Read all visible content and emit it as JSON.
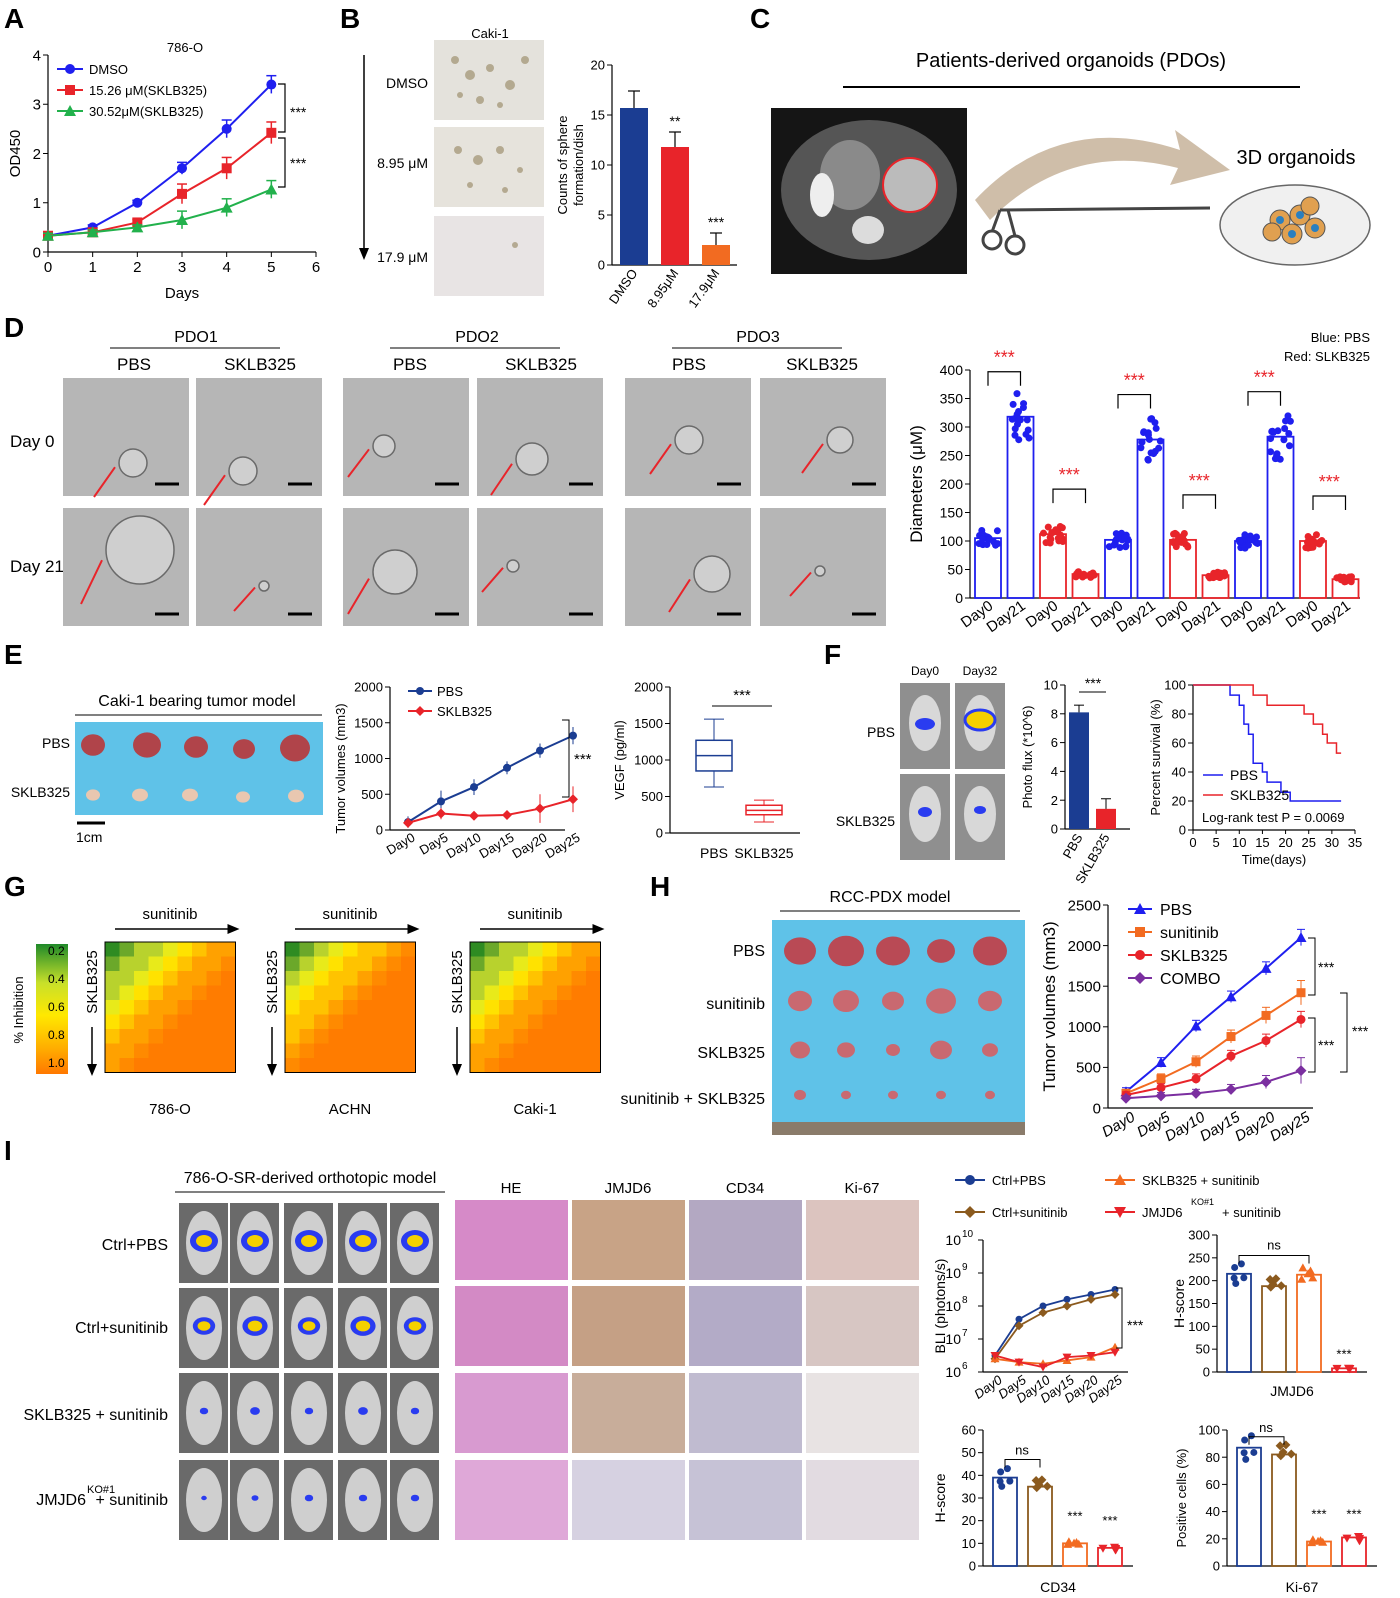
{
  "panel_labels": [
    "A",
    "B",
    "C",
    "D",
    "E",
    "F",
    "G",
    "H",
    "I"
  ],
  "panelA": {
    "chart_data": {
      "type": "line",
      "title": "786-O",
      "xlabel": "Days",
      "ylabel": "OD450",
      "xlim": [
        0,
        6
      ],
      "ylim": [
        0,
        4
      ],
      "xticks": [
        "0",
        "1",
        "2",
        "3",
        "4",
        "5",
        "6"
      ],
      "yticks": [
        "0",
        "1",
        "2",
        "3",
        "4"
      ],
      "x": [
        0,
        1,
        2,
        3,
        4,
        5
      ],
      "series": [
        {
          "name": "DMSO",
          "color": "#1f1fef",
          "marker": "circle",
          "values": [
            0.33,
            0.5,
            1.0,
            1.7,
            2.5,
            3.4
          ],
          "err": [
            0.05,
            0.05,
            0.05,
            0.12,
            0.18,
            0.18
          ]
        },
        {
          "name": "15.26 μM(SKLB325)",
          "color": "#e8242a",
          "marker": "square",
          "values": [
            0.33,
            0.4,
            0.6,
            1.18,
            1.7,
            2.42
          ],
          "err": [
            0.05,
            0.05,
            0.06,
            0.2,
            0.22,
            0.22
          ]
        },
        {
          "name": "30.52μM(SKLB325)",
          "color": "#22b14c",
          "marker": "triangle",
          "values": [
            0.33,
            0.4,
            0.5,
            0.65,
            0.9,
            1.27
          ],
          "err": [
            0.05,
            0.05,
            0.05,
            0.18,
            0.18,
            0.18
          ]
        }
      ],
      "annotations": [
        "***",
        "***"
      ]
    }
  },
  "panelB": {
    "title": "Caki-1",
    "row_labels": [
      "DMSO",
      "8.95 μM",
      "17.9 μM"
    ],
    "chart_data": {
      "type": "bar",
      "categories": [
        "DMSO",
        "8.95μM",
        "17.9μM"
      ],
      "values": [
        15.7,
        11.8,
        2.0
      ],
      "err": [
        1.7,
        1.5,
        1.2
      ],
      "colors": [
        "#1b3d92",
        "#e8242a",
        "#f26b21"
      ],
      "ylabel": "Counts of sphere formation/dish",
      "ylim": [
        0,
        20
      ],
      "yticks": [
        "0",
        "5",
        "10",
        "15",
        "20"
      ],
      "annotations": [
        "",
        "**",
        "***"
      ]
    }
  },
  "panelC": {
    "title": "Patients-derived organoids (PDOs)",
    "label_3d": "3D organoids"
  },
  "panelD": {
    "groups": [
      "PDO1",
      "PDO2",
      "PDO3"
    ],
    "conditions": [
      "PBS",
      "SKLB325"
    ],
    "days": [
      "Day 0",
      "Day 21"
    ],
    "legend_blue": "Blue: PBS",
    "legend_red": "Red: SLKB325",
    "chart_data": {
      "type": "bar",
      "ylabel": "Diameters (μM)",
      "ylim": [
        0,
        400
      ],
      "yticks": [
        "0",
        "50",
        "100",
        "150",
        "200",
        "250",
        "300",
        "350",
        "400"
      ],
      "categories": [
        "Day0",
        "Day21",
        "Day0",
        "Day21",
        "Day0",
        "Day21",
        "Day0",
        "Day21",
        "Day0",
        "Day21",
        "Day0",
        "Day21"
      ],
      "values": [
        105,
        318,
        112,
        42,
        102,
        278,
        102,
        40,
        100,
        283,
        100,
        33
      ],
      "colors": [
        "#1f1fef",
        "#1f1fef",
        "#e8242a",
        "#e8242a",
        "#1f1fef",
        "#1f1fef",
        "#e8242a",
        "#e8242a",
        "#1f1fef",
        "#1f1fef",
        "#e8242a",
        "#e8242a"
      ],
      "annotations": [
        "***",
        "***",
        "***",
        "***",
        "***",
        "***"
      ]
    }
  },
  "panelE": {
    "model_title": "Caki-1  bearing tumor model",
    "rows": [
      "PBS",
      "SKLB325"
    ],
    "scale": "1cm",
    "line_chart": {
      "type": "line",
      "ylabel": "Tumor volumes (mm3)",
      "ylim": [
        0,
        2000
      ],
      "yticks": [
        "0",
        "500",
        "1000",
        "1500",
        "2000"
      ],
      "x": [
        "Day0",
        "Day5",
        "Day10",
        "Day15",
        "Day20",
        "Day25"
      ],
      "series": [
        {
          "name": "PBS",
          "color": "#1b3d92",
          "values": [
            110,
            400,
            600,
            870,
            1110,
            1320
          ],
          "err": [
            80,
            150,
            110,
            90,
            100,
            120
          ]
        },
        {
          "name": "SKLB325",
          "color": "#e8242a",
          "values": [
            100,
            230,
            200,
            210,
            300,
            430
          ],
          "err": [
            70,
            80,
            60,
            60,
            200,
            180
          ]
        }
      ],
      "annotation": "***"
    },
    "box_chart": {
      "type": "box",
      "ylabel": "VEGF (pg/ml)",
      "ylim": [
        0,
        2000
      ],
      "yticks": [
        "0",
        "500",
        "1000",
        "1500",
        "2000"
      ],
      "categories": [
        "PBS",
        "SKLB325"
      ],
      "boxes": [
        {
          "min": 630,
          "q1": 850,
          "median": 1060,
          "q3": 1270,
          "max": 1560,
          "color": "#1b3d92"
        },
        {
          "min": 150,
          "q1": 250,
          "median": 310,
          "q3": 380,
          "max": 450,
          "color": "#e8242a"
        }
      ],
      "annotation": "***"
    }
  },
  "panelF": {
    "col_labels": [
      "Day0",
      "Day32"
    ],
    "rows": [
      "PBS",
      "SKLB325"
    ],
    "bar_chart": {
      "type": "bar",
      "ylabel": "Photo flux (*10^6)",
      "ylim": [
        0,
        10
      ],
      "yticks": [
        "0",
        "2",
        "4",
        "6",
        "8",
        "10"
      ],
      "categories": [
        "PBS",
        "SKLB325"
      ],
      "values": [
        8.1,
        1.4
      ],
      "err": [
        0.5,
        0.7
      ],
      "colors": [
        "#1b3d92",
        "#e8242a"
      ],
      "annotation": "***"
    },
    "survival_chart": {
      "type": "line",
      "xlabel": "Time(days)",
      "ylabel": "Percent survival (%)",
      "xlim": [
        0,
        35
      ],
      "ylim": [
        0,
        100
      ],
      "xticks": [
        "0",
        "5",
        "10",
        "15",
        "20",
        "25",
        "30",
        "35"
      ],
      "yticks": [
        "0",
        "20",
        "40",
        "60",
        "80",
        "100"
      ],
      "series": [
        {
          "name": "PBS",
          "color": "#1f1fef",
          "x": [
            0,
            8,
            8,
            10,
            10,
            11,
            11,
            12,
            12,
            13,
            13,
            15,
            15,
            16,
            16,
            19,
            19,
            21,
            21,
            23,
            23,
            32
          ],
          "values": [
            100,
            100,
            93,
            93,
            86,
            86,
            73,
            73,
            66,
            66,
            46,
            46,
            40,
            40,
            33,
            33,
            26,
            26,
            20,
            20,
            20,
            20
          ]
        },
        {
          "name": "SKLB325",
          "color": "#e8242a",
          "x": [
            0,
            13,
            13,
            16,
            16,
            24,
            24,
            26,
            26,
            28,
            28,
            29,
            29,
            31,
            31,
            32
          ],
          "values": [
            100,
            100,
            93,
            93,
            86,
            86,
            80,
            80,
            73,
            73,
            66,
            66,
            60,
            60,
            53,
            53
          ]
        }
      ],
      "annotation": "Log-rank test P = 0.0069"
    }
  },
  "panelG": {
    "drug_x": "sunitinib",
    "drug_y": "SKLB325",
    "cell_lines": [
      "786-O",
      "ACHN",
      "Caki-1"
    ],
    "colorbar_label": "% Inhibition",
    "colorbar_ticks": [
      "0.2",
      "0.4",
      "0.6",
      "0.8",
      "1.0"
    ]
  },
  "panelH": {
    "model_title": "RCC-PDX model",
    "rows": [
      "PBS",
      "sunitinib",
      "SKLB325",
      "sunitinib + SKLB325"
    ],
    "chart_data": {
      "type": "line",
      "ylabel": "Tumor volumes (mm3)",
      "ylim": [
        0,
        2500
      ],
      "yticks": [
        "0",
        "500",
        "1000",
        "1500",
        "2000",
        "2500"
      ],
      "x": [
        "Day0",
        "Day5",
        "Day10",
        "Day15",
        "Day20",
        "Day25"
      ],
      "series": [
        {
          "name": "PBS",
          "color": "#1f1fef",
          "marker": "triangle",
          "values": [
            200,
            560,
            1010,
            1370,
            1720,
            2100
          ],
          "err": [
            50,
            60,
            70,
            70,
            80,
            100
          ]
        },
        {
          "name": "sunitinib",
          "color": "#f26b21",
          "marker": "square",
          "values": [
            180,
            360,
            570,
            880,
            1140,
            1420
          ],
          "err": [
            50,
            60,
            70,
            80,
            100,
            150
          ]
        },
        {
          "name": "SKLB325",
          "color": "#e8242a",
          "marker": "circle",
          "values": [
            160,
            250,
            360,
            640,
            830,
            1090
          ],
          "err": [
            40,
            50,
            60,
            70,
            80,
            100
          ]
        },
        {
          "name": "COMBO",
          "color": "#7b2fa0",
          "marker": "diamond",
          "values": [
            120,
            150,
            180,
            230,
            320,
            460
          ],
          "err": [
            30,
            40,
            50,
            60,
            80,
            160
          ]
        }
      ],
      "annotations": [
        "***",
        "***",
        "***"
      ]
    }
  },
  "panelI": {
    "model_title": "786-O-SR-derived orthotopic  model",
    "rows": [
      "Ctrl+PBS",
      "Ctrl+sunitinib",
      "SKLB325 + sunitinib",
      "JMJD6",
      "KO#1",
      "+ sunitinib"
    ],
    "stain_cols": [
      "HE",
      "JMJD6",
      "CD34",
      "Ki-67"
    ],
    "legend": [
      "Ctrl+PBS",
      "SKLB325 + sunitinib",
      "Ctrl+sunitinib",
      "JMJD6",
      "KO#1",
      "+ sunitinib"
    ],
    "bli_chart": {
      "type": "line",
      "ylabel": "BLI (photons/s)",
      "yscale": "log",
      "ylim": [
        1000000,
        10000000000
      ],
      "ytick_base": "10",
      "ytick_exps": [
        "6",
        "7",
        "8",
        "9",
        "10"
      ],
      "x": [
        "Day0",
        "Day5",
        "Day10",
        "Day15",
        "Day20",
        "Day25"
      ],
      "series": [
        {
          "name": "Ctrl+PBS",
          "color": "#1b3d92",
          "log10": [
            6.5,
            7.6,
            8.0,
            8.2,
            8.35,
            8.5
          ]
        },
        {
          "name": "Ctrl+sunitinib",
          "color": "#8b5a1e",
          "log10": [
            6.4,
            7.4,
            7.8,
            8.0,
            8.2,
            8.35
          ]
        },
        {
          "name": "SKLB325 + sunitinib",
          "color": "#f26b21",
          "log10": [
            6.4,
            6.3,
            6.25,
            6.35,
            6.45,
            6.75
          ]
        },
        {
          "name": "JMJD6 KO#1 + sunitinib",
          "color": "#e8242a",
          "log10": [
            6.5,
            6.3,
            6.15,
            6.45,
            6.5,
            6.6
          ]
        }
      ],
      "annotation": "***"
    },
    "jmjd6_chart": {
      "type": "bar",
      "xlabel": "JMJD6",
      "ylabel": "H-score",
      "ylim": [
        0,
        300
      ],
      "yticks": [
        "0",
        "50",
        "100",
        "150",
        "200",
        "250",
        "300"
      ],
      "values": [
        215,
        188,
        213,
        8
      ],
      "colors": [
        "#1b3d92",
        "#8b5a1e",
        "#f26b21",
        "#e8242a"
      ],
      "annotations": [
        "ns",
        "***"
      ]
    },
    "cd34_chart": {
      "type": "bar",
      "xlabel": "CD34",
      "ylabel": "H-score",
      "ylim": [
        0,
        60
      ],
      "yticks": [
        "0",
        "10",
        "20",
        "30",
        "40",
        "50",
        "60"
      ],
      "values": [
        39,
        35,
        10,
        8
      ],
      "colors": [
        "#1b3d92",
        "#8b5a1e",
        "#f26b21",
        "#e8242a"
      ],
      "annotations": [
        "ns",
        "***",
        "***"
      ]
    },
    "ki67_chart": {
      "type": "bar",
      "xlabel": "Ki-67",
      "ylabel": "Positive cells (%)",
      "ylim": [
        0,
        100
      ],
      "yticks": [
        "0",
        "20",
        "40",
        "60",
        "80",
        "100"
      ],
      "values": [
        87,
        82,
        18,
        21
      ],
      "colors": [
        "#1b3d92",
        "#8b5a1e",
        "#f26b21",
        "#e8242a"
      ],
      "annotations": [
        "ns",
        "***",
        "***"
      ]
    }
  }
}
